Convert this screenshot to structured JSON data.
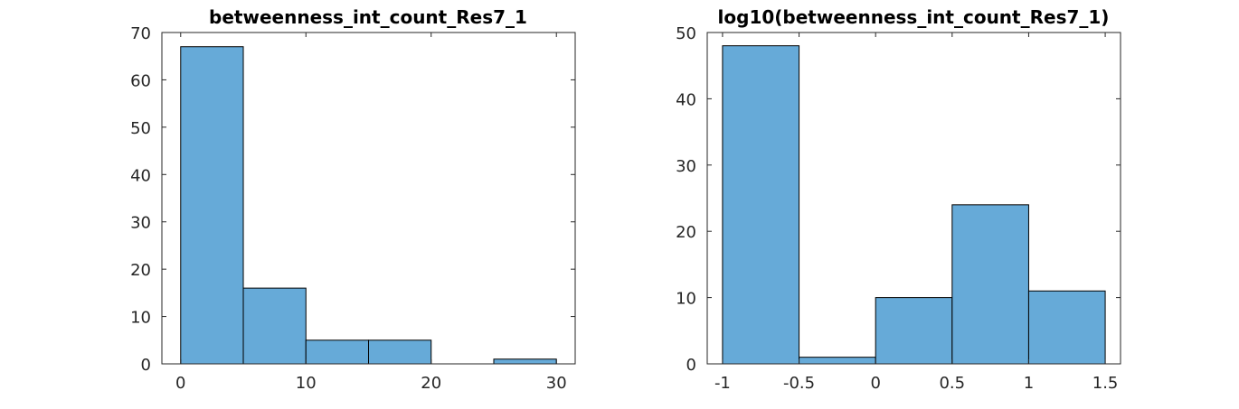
{
  "colors": {
    "bar_fill": "#66aad8",
    "bar_edge": "#000000",
    "axis": "#262626",
    "background": "#ffffff"
  },
  "chart_data": [
    {
      "type": "bar",
      "title": "betweenness_int_count_Res7_1",
      "bin_edges": [
        0,
        5,
        10,
        15,
        20,
        25,
        30
      ],
      "values": [
        67,
        16,
        5,
        5,
        0,
        1
      ],
      "xlim": [
        -1.5,
        31.5
      ],
      "ylim": [
        0,
        70
      ],
      "xticks": [
        0,
        10,
        20,
        30
      ],
      "xtick_labels": [
        "0",
        "10",
        "20",
        "30"
      ],
      "yticks": [
        0,
        10,
        20,
        30,
        40,
        50,
        60,
        70
      ],
      "ytick_labels": [
        "0",
        "10",
        "20",
        "30",
        "40",
        "50",
        "60",
        "70"
      ],
      "grid": false,
      "xlabel": "",
      "ylabel": ""
    },
    {
      "type": "bar",
      "title": "log10(betweenness_int_count_Res7_1)",
      "bin_edges": [
        -1,
        -0.5,
        0,
        0.5,
        1,
        1.5
      ],
      "values": [
        48,
        1,
        10,
        24,
        11
      ],
      "xlim": [
        -1.1,
        1.6
      ],
      "ylim": [
        0,
        50
      ],
      "xticks": [
        -1,
        -0.5,
        0,
        0.5,
        1,
        1.5
      ],
      "xtick_labels": [
        "-1",
        "-0.5",
        "0",
        "0.5",
        "1",
        "1.5"
      ],
      "yticks": [
        0,
        10,
        20,
        30,
        40,
        50
      ],
      "ytick_labels": [
        "0",
        "10",
        "20",
        "30",
        "40",
        "50"
      ],
      "grid": false,
      "xlabel": "",
      "ylabel": ""
    }
  ]
}
